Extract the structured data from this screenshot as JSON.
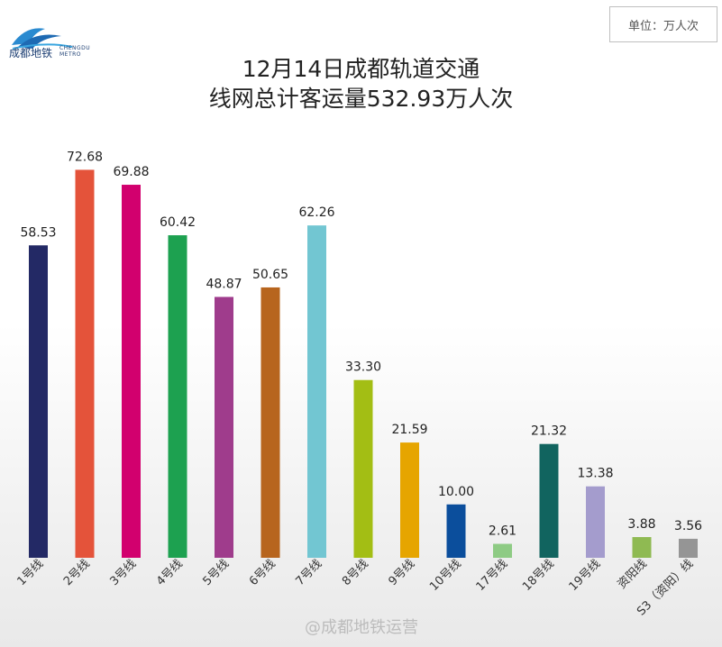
{
  "logo": {
    "name_cn": "成都地铁",
    "name_en_line1": "CHENGDU",
    "name_en_line2": "METRO"
  },
  "unit_label": "单位：万人次",
  "title_line1": "12月14日成都轨道交通",
  "title_line2": "线网总计客运量532.93万人次",
  "watermark": "@成都地铁运营",
  "chart_data": {
    "type": "bar",
    "title": "12月14日成都轨道交通 线网总计客运量532.93万人次",
    "unit": "万人次",
    "categories": [
      "1号线",
      "2号线",
      "3号线",
      "4号线",
      "5号线",
      "6号线",
      "7号线",
      "8号线",
      "9号线",
      "10号线",
      "17号线",
      "18号线",
      "19号线",
      "资阳线",
      "S3（资阳）线"
    ],
    "values": [
      58.53,
      72.68,
      69.88,
      60.42,
      48.87,
      50.65,
      62.26,
      33.3,
      21.59,
      10.0,
      2.61,
      21.32,
      13.38,
      3.88,
      3.56
    ],
    "value_labels": [
      "58.53",
      "72.68",
      "69.88",
      "60.42",
      "48.87",
      "50.65",
      "62.26",
      "33.30",
      "21.59",
      "10.00",
      "2.61",
      "21.32",
      "13.38",
      "3.88",
      "3.56"
    ],
    "colors": [
      "#232965",
      "#e4533a",
      "#d2006e",
      "#1da150",
      "#9f3c8c",
      "#b7651e",
      "#72c6d2",
      "#a3be14",
      "#e6a500",
      "#0b4e9c",
      "#8ecb84",
      "#11645f",
      "#a49ccd",
      "#8fba52",
      "#959595"
    ],
    "ylim": [
      0,
      80
    ],
    "grid": false,
    "legend": "none"
  }
}
